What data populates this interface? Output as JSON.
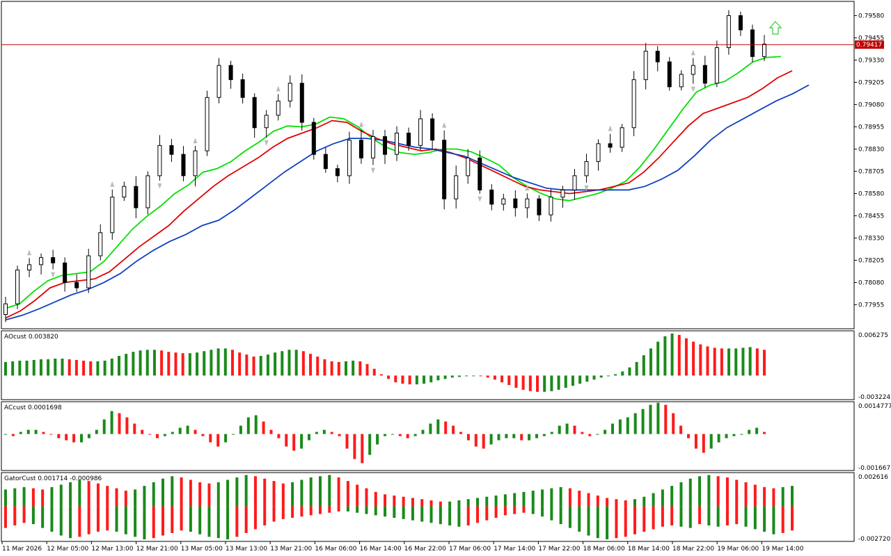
{
  "chart_data": [
    {
      "type": "candlestick",
      "name": "price",
      "y_ticks": [
        "0.79580",
        "0.79455",
        "0.79330",
        "0.79205",
        "0.79080",
        "0.78955",
        "0.78830",
        "0.78705",
        "0.78580",
        "0.78455",
        "0.78330",
        "0.78205",
        "0.78080",
        "0.77955"
      ],
      "ylim": [
        0.7782,
        0.7966
      ],
      "current_price": "0.79417",
      "current_price_value": 0.79417,
      "x_ticks": [
        "11 Mar 2026",
        "12 Mar 05:00",
        "12 Mar 13:00",
        "12 Mar 21:00",
        "13 Mar 05:00",
        "13 Mar 13:00",
        "13 Mar 21:00",
        "16 Mar 06:00",
        "16 Mar 14:00",
        "16 Mar 22:00",
        "17 Mar 06:00",
        "17 Mar 14:00",
        "17 Mar 22:00",
        "18 Mar 06:00",
        "18 Mar 14:00",
        "18 Mar 22:00",
        "19 Mar 06:00",
        "19 Mar 14:00"
      ],
      "close_path": [
        0.779,
        0.7796,
        0.7815,
        0.7818,
        0.7822,
        0.7819,
        0.7808,
        0.7805,
        0.7823,
        0.7836,
        0.7856,
        0.7862,
        0.785,
        0.7868,
        0.7885,
        0.788,
        0.7868,
        0.7882,
        0.7912,
        0.793,
        0.7922,
        0.7912,
        0.7895,
        0.7902,
        0.791,
        0.792,
        0.7898,
        0.788,
        0.7872,
        0.7868,
        0.7888,
        0.7878,
        0.789,
        0.788,
        0.7892,
        0.7885,
        0.79,
        0.7888,
        0.7855,
        0.7868,
        0.7878,
        0.786,
        0.7852,
        0.7855,
        0.785,
        0.7855,
        0.7846,
        0.7856,
        0.786,
        0.7868,
        0.7876,
        0.7886,
        0.7884,
        0.7895,
        0.7922,
        0.7938,
        0.7932,
        0.7918,
        0.7925,
        0.793,
        0.792,
        0.794,
        0.7958,
        0.795,
        0.7935,
        0.7942
      ],
      "series": [
        {
          "name": "green MA",
          "color": "#00e000",
          "values": [
            0.77935,
            0.7796,
            0.7803,
            0.7809,
            0.7812,
            0.7813,
            0.7814,
            0.782,
            0.7829,
            0.7838,
            0.7845,
            0.7851,
            0.7858,
            0.7863,
            0.787,
            0.7872,
            0.7876,
            0.7882,
            0.7887,
            0.7893,
            0.7896,
            0.78955,
            0.7897,
            0.7901,
            0.79,
            0.78955,
            0.7889,
            0.7884,
            0.7881,
            0.788,
            0.7881,
            0.7883,
            0.7883,
            0.78815,
            0.7878,
            0.7874,
            0.7867,
            0.7862,
            0.7858,
            0.7855,
            0.7854,
            0.7856,
            0.7858,
            0.7861,
            0.7865,
            0.7873,
            0.7883,
            0.7894,
            0.7905,
            0.7915,
            0.7919,
            0.7921,
            0.7926,
            0.7932,
            0.79345,
            0.7935
          ]
        },
        {
          "name": "red MA",
          "color": "#e00000",
          "values": [
            0.7788,
            0.7792,
            0.7798,
            0.7805,
            0.7808,
            0.7809,
            0.781,
            0.7814,
            0.7821,
            0.7828,
            0.7834,
            0.784,
            0.7848,
            0.7855,
            0.7862,
            0.7868,
            0.7873,
            0.7878,
            0.7884,
            0.7889,
            0.7892,
            0.7895,
            0.7899,
            0.7898,
            0.7893,
            0.7889,
            0.7886,
            0.7884,
            0.7882,
            0.7883,
            0.7881,
            0.7878,
            0.7874,
            0.787,
            0.7866,
            0.7862,
            0.786,
            0.7859,
            0.7858,
            0.7859,
            0.786,
            0.7862,
            0.7864,
            0.787,
            0.7878,
            0.7887,
            0.7896,
            0.7903,
            0.7906,
            0.7909,
            0.7912,
            0.7917,
            0.7923,
            0.7927
          ]
        },
        {
          "name": "blue MA",
          "color": "#1040c0",
          "values": [
            0.7787,
            0.77895,
            0.7793,
            0.7797,
            0.7801,
            0.7804,
            0.7808,
            0.7813,
            0.782,
            0.7826,
            0.7831,
            0.7835,
            0.784,
            0.7843,
            0.7849,
            0.7856,
            0.7863,
            0.787,
            0.7876,
            0.7882,
            0.7886,
            0.7889,
            0.7889,
            0.7888,
            0.7886,
            0.7884,
            0.7883,
            0.7881,
            0.7879,
            0.7875,
            0.7871,
            0.7867,
            0.7864,
            0.7861,
            0.786,
            0.786,
            0.786,
            0.786,
            0.786,
            0.7862,
            0.7866,
            0.7871,
            0.7879,
            0.7888,
            0.7895,
            0.79,
            0.7905,
            0.791,
            0.7914,
            0.7919
          ]
        }
      ],
      "signal_arrow": {
        "direction": "up",
        "color": "#33cc33"
      }
    },
    {
      "type": "histogram",
      "name": "AOcust",
      "label": "AOcust 0.003820",
      "y_ticks": [
        "0.006275",
        "-0.003224"
      ],
      "ylim": [
        -0.00355,
        0.0066
      ],
      "colors": {
        "up": "#1a8a1a",
        "down": "#ff1a1a"
      },
      "values": [
        0.002,
        0.0021,
        0.0022,
        0.0022,
        0.0023,
        0.0024,
        0.0024,
        0.0025,
        0.0025,
        0.0024,
        0.0023,
        0.0022,
        0.0021,
        0.0021,
        0.0022,
        0.0025,
        0.0029,
        0.0032,
        0.0035,
        0.0037,
        0.0038,
        0.0038,
        0.0037,
        0.0035,
        0.0034,
        0.0033,
        0.0033,
        0.0034,
        0.0036,
        0.0038,
        0.004,
        0.004,
        0.0038,
        0.0034,
        0.0031,
        0.0028,
        0.0029,
        0.0031,
        0.0034,
        0.0036,
        0.0038,
        0.0038,
        0.0036,
        0.0032,
        0.0028,
        0.0024,
        0.0021,
        0.002,
        0.0021,
        0.0022,
        0.0021,
        0.0017,
        0.001,
        0.0002,
        -0.0005,
        -0.001,
        -0.0012,
        -0.0013,
        -0.0013,
        -0.0012,
        -0.001,
        -0.0007,
        -0.0005,
        -0.0003,
        -0.0002,
        -0.0001,
        0.0,
        -0.0001,
        -0.0003,
        -0.0006,
        -0.001,
        -0.0014,
        -0.0018,
        -0.0021,
        -0.0023,
        -0.0024,
        -0.0024,
        -0.0023,
        -0.0021,
        -0.0018,
        -0.0015,
        -0.0012,
        -0.0009,
        -0.0006,
        -0.0003,
        -0.0001,
        0.0002,
        0.0006,
        0.0012,
        0.002,
        0.003,
        0.004,
        0.005,
        0.0058,
        0.0062,
        0.006,
        0.0055,
        0.005,
        0.0046,
        0.0043,
        0.0041,
        0.004,
        0.004,
        0.004,
        0.0041,
        0.0042,
        0.004,
        0.0038
      ]
    },
    {
      "type": "histogram",
      "name": "ACcust",
      "label": "ACcust 0.0001698",
      "y_ticks": [
        "0.0014777",
        "-0.0016673"
      ],
      "ylim": [
        -0.00175,
        0.00155
      ],
      "colors": {
        "up": "#1a8a1a",
        "down": "#ff1a1a"
      },
      "values": [
        0.0,
        -0.0001,
        0.0001,
        0.0002,
        0.0002,
        0.0001,
        0.0,
        -0.0002,
        -0.0003,
        -0.0004,
        -0.0004,
        -0.0002,
        0.0002,
        0.0007,
        0.0011,
        0.001,
        0.0008,
        0.0005,
        0.0002,
        0.0,
        -0.0002,
        -0.0001,
        0.0001,
        0.0003,
        0.0004,
        0.0002,
        -0.0001,
        -0.0004,
        -0.0006,
        -0.0004,
        0.0,
        0.0004,
        0.0008,
        0.0009,
        0.0006,
        0.0002,
        -0.0002,
        -0.0006,
        -0.0008,
        -0.0007,
        -0.0003,
        0.0001,
        0.0002,
        0.0001,
        -0.0001,
        -0.0007,
        -0.0012,
        -0.0014,
        -0.001,
        -0.0005,
        -0.0001,
        0.0,
        -0.0001,
        -0.0002,
        -0.0001,
        0.0002,
        0.0005,
        0.0007,
        0.0006,
        0.0004,
        0.0001,
        -0.0003,
        -0.0006,
        -0.0007,
        -0.0005,
        -0.0003,
        -0.0002,
        -0.0002,
        -0.0003,
        -0.0003,
        -0.0002,
        -0.0001,
        0.0001,
        0.0004,
        0.0005,
        0.0004,
        0.0001,
        -0.0001,
        0.0,
        0.0002,
        0.0005,
        0.0007,
        0.0008,
        0.001,
        0.0012,
        0.0014,
        0.0015,
        0.0014,
        0.001,
        0.0004,
        -0.0002,
        -0.0007,
        -0.0009,
        -0.0007,
        -0.0004,
        -0.0002,
        -0.0001,
        0.0,
        0.0002,
        0.0003,
        0.0001
      ]
    },
    {
      "type": "histogram-pair",
      "name": "GatorCust",
      "label": "GatorCust 0.001714 -0.000986",
      "y_ticks": [
        "0.002616",
        "-0.002720"
      ],
      "ylim": [
        -0.0029,
        0.0028
      ],
      "colors": {
        "up": "#1a8a1a",
        "down": "#ff1a1a"
      },
      "upper": [
        0.0014,
        0.0015,
        0.0016,
        0.0015,
        0.0014,
        0.0016,
        0.0018,
        0.002,
        0.0022,
        0.0021,
        0.0019,
        0.0017,
        0.0015,
        0.0013,
        0.0014,
        0.0017,
        0.002,
        0.0023,
        0.0025,
        0.0024,
        0.0022,
        0.002,
        0.0019,
        0.002,
        0.0022,
        0.0024,
        0.0026,
        0.0025,
        0.0023,
        0.0021,
        0.0019,
        0.002,
        0.0022,
        0.0024,
        0.0025,
        0.0026,
        0.0024,
        0.0021,
        0.0018,
        0.0015,
        0.0012,
        0.001,
        0.0009,
        0.0008,
        0.0007,
        0.0006,
        0.0005,
        0.0004,
        0.0004,
        0.0005,
        0.0006,
        0.0007,
        0.0008,
        0.0009,
        0.001,
        0.0011,
        0.0012,
        0.0013,
        0.0014,
        0.0015,
        0.0016,
        0.0015,
        0.0013,
        0.0011,
        0.0009,
        0.0007,
        0.0006,
        0.0005,
        0.0006,
        0.0008,
        0.0011,
        0.0014,
        0.0017,
        0.002,
        0.0023,
        0.0025,
        0.0026,
        0.0025,
        0.0024,
        0.0022,
        0.002,
        0.0018,
        0.0016,
        0.0015,
        0.0016,
        0.0017
      ]
    }
  ],
  "indicator_labels": {
    "ao": "AOcust 0.003820",
    "ac": "ACcust 0.0001698",
    "gator": "GatorCust 0.001714 -0.000986"
  }
}
